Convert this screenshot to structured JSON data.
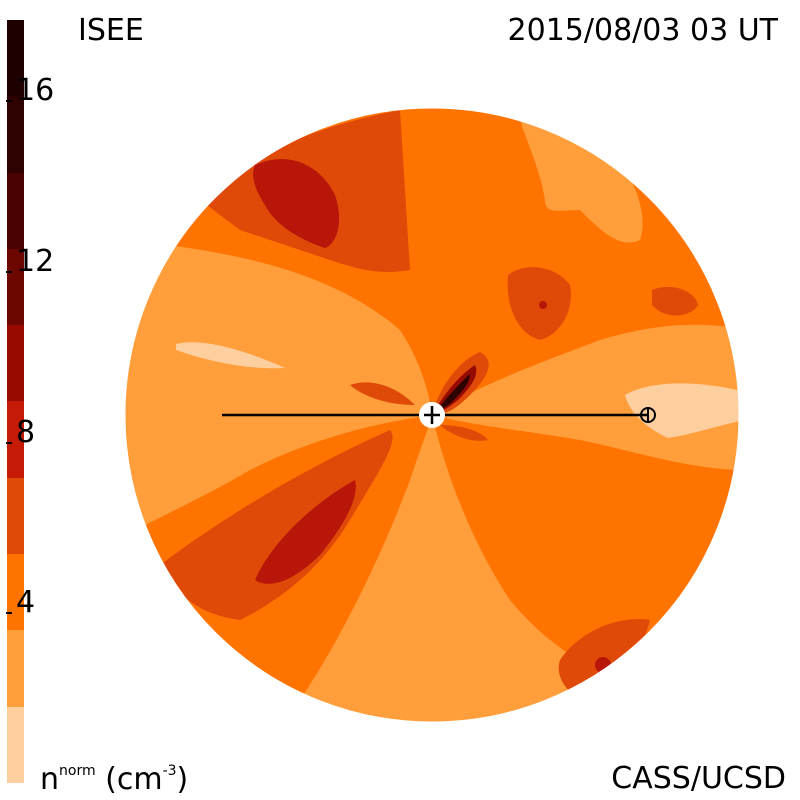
{
  "header": {
    "source": "ISEE",
    "timestamp": "2015/08/03 03 UT"
  },
  "footer": {
    "credit": "CASS/UCSD",
    "units_base": "n",
    "units_sup": "norm",
    "units_paren": "(cm",
    "units_exp": "-3",
    "units_close": ")"
  },
  "colorbar": {
    "ticks": [
      "16",
      "12",
      "8",
      "4"
    ],
    "levels": [
      {
        "min": 18,
        "max": 20,
        "color": "#1e0000"
      },
      {
        "min": 16,
        "max": 18,
        "color": "#2e0200"
      },
      {
        "min": 14,
        "max": 16,
        "color": "#4a0300"
      },
      {
        "min": 12,
        "max": 14,
        "color": "#6b0600"
      },
      {
        "min": 10,
        "max": 12,
        "color": "#960a00"
      },
      {
        "min": 8,
        "max": 10,
        "color": "#c41a06"
      },
      {
        "min": 6,
        "max": 8,
        "color": "#e04a08"
      },
      {
        "min": 4,
        "max": 6,
        "color": "#ff7400"
      },
      {
        "min": 2,
        "max": 4,
        "color": "#ff9e3a"
      },
      {
        "min": 0,
        "max": 2,
        "color": "#fecf9e"
      }
    ]
  },
  "colors": {
    "lightest": "#fecf9e",
    "light": "#ff9e3a",
    "medium": "#ff7400",
    "dark": "#e04a08",
    "darker": "#b81608",
    "darkest": "#3a0200"
  }
}
